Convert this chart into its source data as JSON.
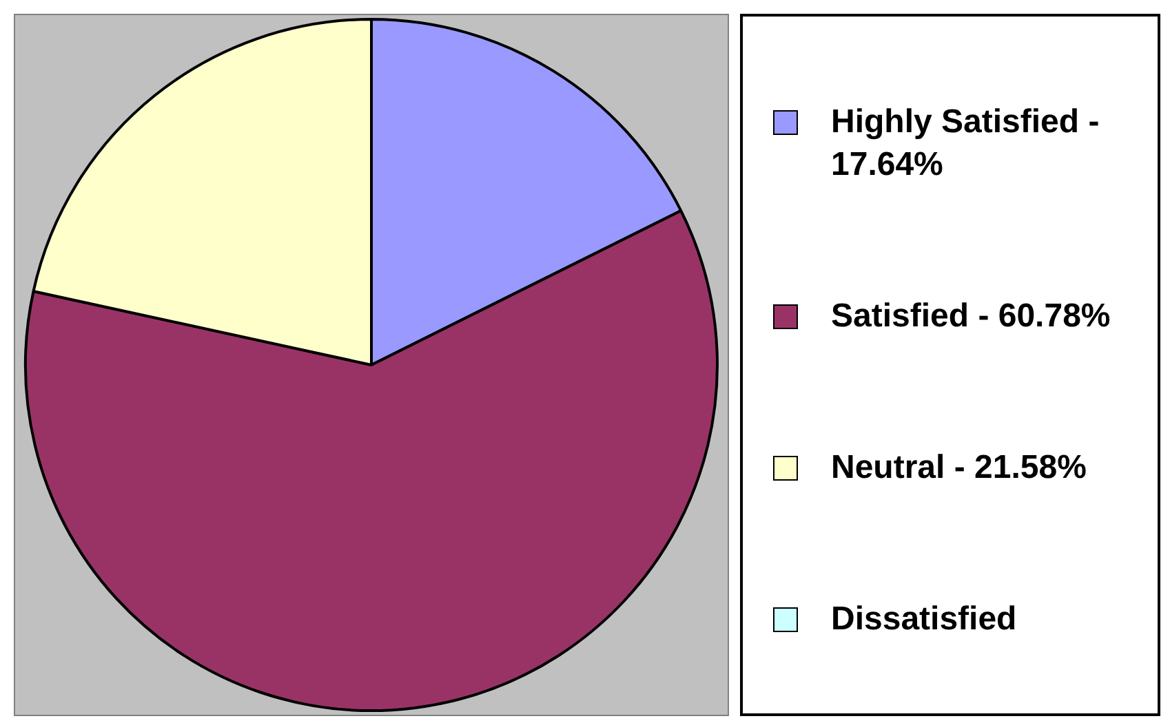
{
  "chart_data": {
    "type": "pie",
    "categories": [
      "Highly Satisfied - 17.64%",
      "Satisfied - 60.78%",
      "Neutral - 21.58%",
      "Dissatisfied"
    ],
    "values": [
      17.64,
      60.78,
      21.58,
      0
    ],
    "colors": [
      "#9999ff",
      "#993366",
      "#ffffcc",
      "#ccffff"
    ],
    "legend": "right"
  }
}
